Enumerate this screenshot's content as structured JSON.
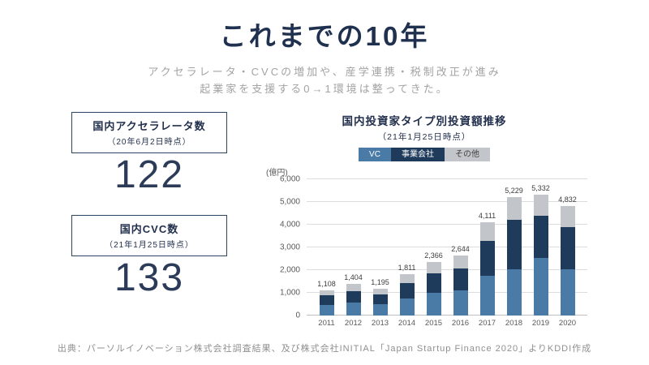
{
  "title": "これまでの10年",
  "subtitle_line1": "アクセラレータ・CVCの増加や、産学連携・税制改正が進み",
  "subtitle_line2": "起業家を支援する0→1環境は整ってきた。",
  "stats": [
    {
      "label": "国内アクセラレータ数",
      "date": "（20年6月2日時点）",
      "value": "122"
    },
    {
      "label": "国内CVC数",
      "date": "（21年1月25日時点）",
      "value": "133"
    }
  ],
  "chart_data": {
    "type": "bar",
    "stacked": true,
    "title": "国内投資家タイプ別投資額推移",
    "subtitle": "（21年1月25日時点）",
    "unit_label": "(億円)",
    "ylabel": "億円",
    "ylim": [
      0,
      6000
    ],
    "yticks": [
      "0",
      "1,000",
      "2,000",
      "3,000",
      "4,000",
      "5,000",
      "6,000"
    ],
    "grid": true,
    "legend_position": "top",
    "categories": [
      "2011",
      "2012",
      "2013",
      "2014",
      "2015",
      "2016",
      "2017",
      "2018",
      "2019",
      "2020"
    ],
    "totals": [
      1108,
      1404,
      1195,
      1811,
      2366,
      2644,
      4111,
      5229,
      5332,
      4832
    ],
    "total_labels": [
      "1,108",
      "1,404",
      "1,195",
      "1,811",
      "2,366",
      "2,644",
      "4,111",
      "5,229",
      "5,332",
      "4,832"
    ],
    "series": [
      {
        "name": "VC",
        "color": "#4a7ba6",
        "text_color": "#ffffff",
        "values": [
          460,
          580,
          500,
          760,
          1000,
          1100,
          1750,
          2050,
          2550,
          2050
        ]
      },
      {
        "name": "事業会社",
        "color": "#1f3b5c",
        "text_color": "#ffffff",
        "values": [
          420,
          510,
          440,
          680,
          870,
          980,
          1550,
          2150,
          1850,
          1850
        ]
      },
      {
        "name": "その他",
        "color": "#c2c6ca",
        "text_color": "#404040",
        "values": [
          228,
          314,
          255,
          371,
          496,
          564,
          811,
          1029,
          932,
          932
        ]
      }
    ]
  },
  "footer": "出典：パーソルイノベーション株式会社調査結果、及び株式会社INITIAL「Japan Startup Finance 2020」よりKDDI作成",
  "colors": {
    "accent_navy": "#20314f",
    "vc_blue": "#4a7ba6",
    "corp_navy": "#1f3b5c",
    "other_gray": "#c2c6ca",
    "subtitle_gray": "#a3a3a3"
  }
}
